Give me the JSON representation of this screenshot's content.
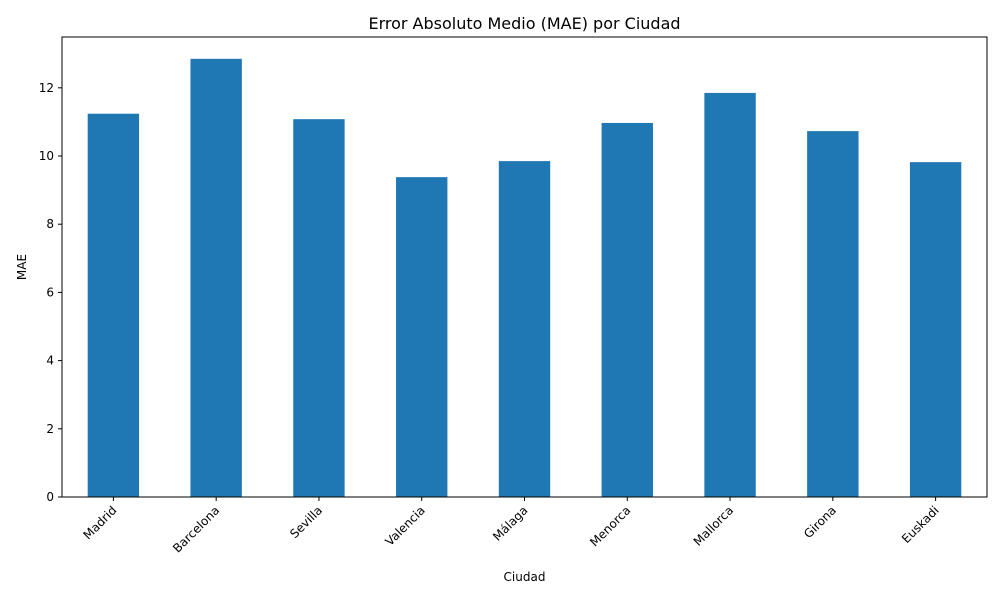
{
  "colors": {
    "bar": "#1f77b4",
    "axis": "#000000",
    "background": "#ffffff"
  },
  "chart_data": {
    "type": "bar",
    "title": "Error Absoluto Medio (MAE) por Ciudad",
    "xlabel": "Ciudad",
    "ylabel": "MAE",
    "categories": [
      "Madrid",
      "Barcelona",
      "Sevilla",
      "Valencia",
      "Málaga",
      "Menorca",
      "Mallorca",
      "Girona",
      "Euskadi"
    ],
    "values": [
      11.24,
      12.85,
      11.08,
      9.38,
      9.85,
      10.97,
      11.85,
      10.73,
      9.82
    ],
    "ylim": [
      0,
      13.49
    ],
    "yticks": [
      "0",
      "2",
      "4",
      "6",
      "8",
      "10",
      "12"
    ],
    "grid": false,
    "legend": "none"
  }
}
